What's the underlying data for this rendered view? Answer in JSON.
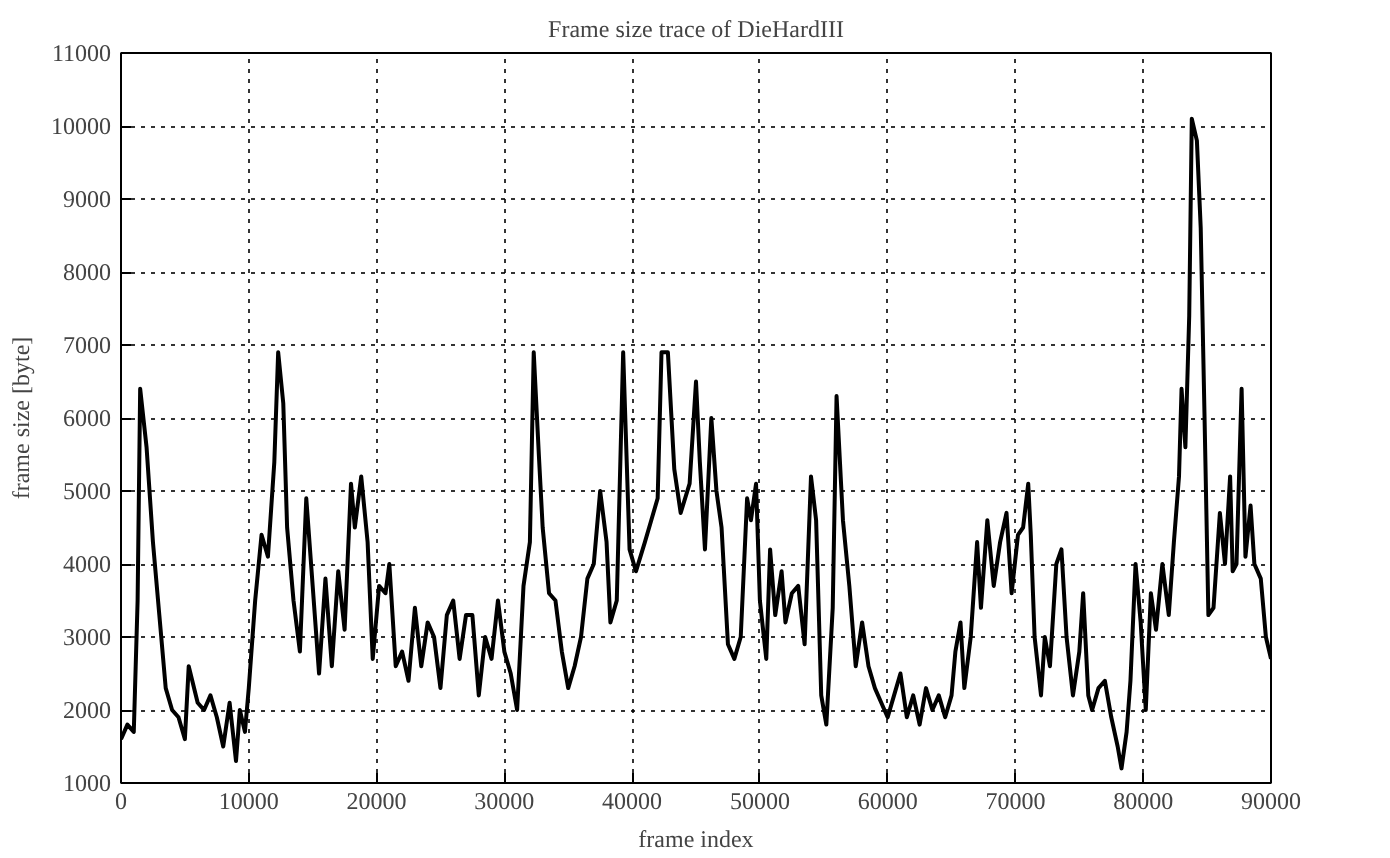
{
  "chart_data": {
    "type": "line",
    "title": "Frame size trace of DieHardIII",
    "xlabel": "frame index",
    "ylabel": "frame size [byte]",
    "xlim": [
      0,
      90000
    ],
    "xticks": [
      0,
      10000,
      20000,
      30000,
      40000,
      50000,
      60000,
      70000,
      80000,
      90000
    ],
    "ylim": [
      1000,
      11000
    ],
    "yticks": [
      1000,
      2000,
      3000,
      4000,
      5000,
      6000,
      7000,
      8000,
      9000,
      10000,
      11000
    ],
    "grid": true,
    "marker": "none",
    "line_style": "solid",
    "x": [
      0,
      500,
      1000,
      1300,
      1500,
      2000,
      2500,
      3000,
      3500,
      4000,
      4500,
      5000,
      5300,
      6000,
      6500,
      7000,
      7500,
      8000,
      8500,
      9000,
      9300,
      9700,
      10000,
      10500,
      11000,
      11500,
      12000,
      12300,
      12700,
      13000,
      13500,
      14000,
      14500,
      15000,
      15500,
      16000,
      16500,
      17000,
      17500,
      18000,
      18300,
      18800,
      19300,
      19700,
      20200,
      20700,
      21000,
      21500,
      22000,
      22500,
      23000,
      23500,
      24000,
      24500,
      25000,
      25500,
      26000,
      26500,
      27000,
      27500,
      28000,
      28500,
      29000,
      29500,
      30000,
      30500,
      31000,
      31500,
      32000,
      32300,
      32700,
      33000,
      33500,
      34000,
      34500,
      35000,
      35500,
      36000,
      36500,
      37000,
      37500,
      38000,
      38300,
      38800,
      39300,
      39800,
      40300,
      41000,
      41500,
      42000,
      42300,
      42800,
      43300,
      43800,
      44500,
      45000,
      45300,
      45700,
      46200,
      46600,
      47000,
      47500,
      48000,
      48500,
      49000,
      49300,
      49700,
      50000,
      50500,
      50800,
      51200,
      51700,
      52000,
      52500,
      53000,
      53500,
      54000,
      54400,
      54800,
      55200,
      55700,
      56000,
      56500,
      57000,
      57500,
      58000,
      58500,
      59000,
      59500,
      60000,
      60500,
      61000,
      61500,
      62000,
      62500,
      63000,
      63500,
      64000,
      64500,
      65000,
      65300,
      65700,
      66000,
      66500,
      67000,
      67300,
      67800,
      68300,
      68800,
      69300,
      69700,
      70200,
      70600,
      71000,
      71200,
      71500,
      72000,
      72300,
      72700,
      73200,
      73600,
      74000,
      74500,
      75000,
      75300,
      75700,
      76000,
      76500,
      77000,
      77500,
      78000,
      78300,
      78700,
      79000,
      79400,
      79800,
      80200,
      80600,
      81000,
      81500,
      82000,
      82400,
      82800,
      83000,
      83300,
      83600,
      83800,
      84200,
      84500,
      84800,
      85100,
      85500,
      86000,
      86400,
      86800,
      87000,
      87300,
      87700,
      88000,
      88400,
      88700,
      89200,
      89600,
      90000
    ],
    "series": [
      {
        "color": "#000000",
        "values": [
          1600,
          1800,
          1700,
          3500,
          6400,
          5600,
          4300,
          3300,
          2300,
          2000,
          1900,
          1600,
          2600,
          2100,
          2000,
          2200,
          1900,
          1500,
          2100,
          1300,
          2000,
          1700,
          2300,
          3500,
          4400,
          4100,
          5400,
          6900,
          6200,
          4500,
          3500,
          2800,
          4900,
          3700,
          2500,
          3800,
          2600,
          3900,
          3100,
          5100,
          4500,
          5200,
          4300,
          2700,
          3700,
          3600,
          4000,
          2600,
          2800,
          2400,
          3400,
          2600,
          3200,
          3000,
          2300,
          3300,
          3500,
          2700,
          3300,
          3300,
          2200,
          3000,
          2700,
          3500,
          2800,
          2500,
          2000,
          3700,
          4300,
          6900,
          5500,
          4500,
          3600,
          3500,
          2800,
          2300,
          2600,
          3000,
          3800,
          4000,
          5000,
          4300,
          3200,
          3500,
          6900,
          4200,
          3900,
          4300,
          4600,
          4900,
          6900,
          6900,
          5300,
          4700,
          5100,
          6500,
          5400,
          4200,
          6000,
          5000,
          4500,
          2900,
          2700,
          3000,
          4900,
          4600,
          5100,
          3500,
          2700,
          4200,
          3300,
          3900,
          3200,
          3600,
          3700,
          2900,
          5200,
          4600,
          2200,
          1800,
          3400,
          6300,
          4600,
          3700,
          2600,
          3200,
          2600,
          2300,
          2100,
          1900,
          2200,
          2500,
          1900,
          2200,
          1800,
          2300,
          2000,
          2200,
          1900,
          2200,
          2800,
          3200,
          2300,
          3000,
          4300,
          3400,
          4600,
          3700,
          4300,
          4700,
          3600,
          4400,
          4500,
          5100,
          4400,
          3000,
          2200,
          3000,
          2600,
          4000,
          4200,
          3000,
          2200,
          2800,
          3600,
          2200,
          2000,
          2300,
          2400,
          1900,
          1500,
          1200,
          1700,
          2400,
          4000,
          3200,
          2000,
          3600,
          3100,
          4000,
          3300,
          4300,
          5200,
          6400,
          5600,
          7400,
          10100,
          9800,
          8600,
          6000,
          3300,
          3400,
          4700,
          4000,
          5200,
          3900,
          4000,
          6400,
          4100,
          4800,
          4000,
          3800,
          3000,
          2700
        ]
      }
    ]
  }
}
